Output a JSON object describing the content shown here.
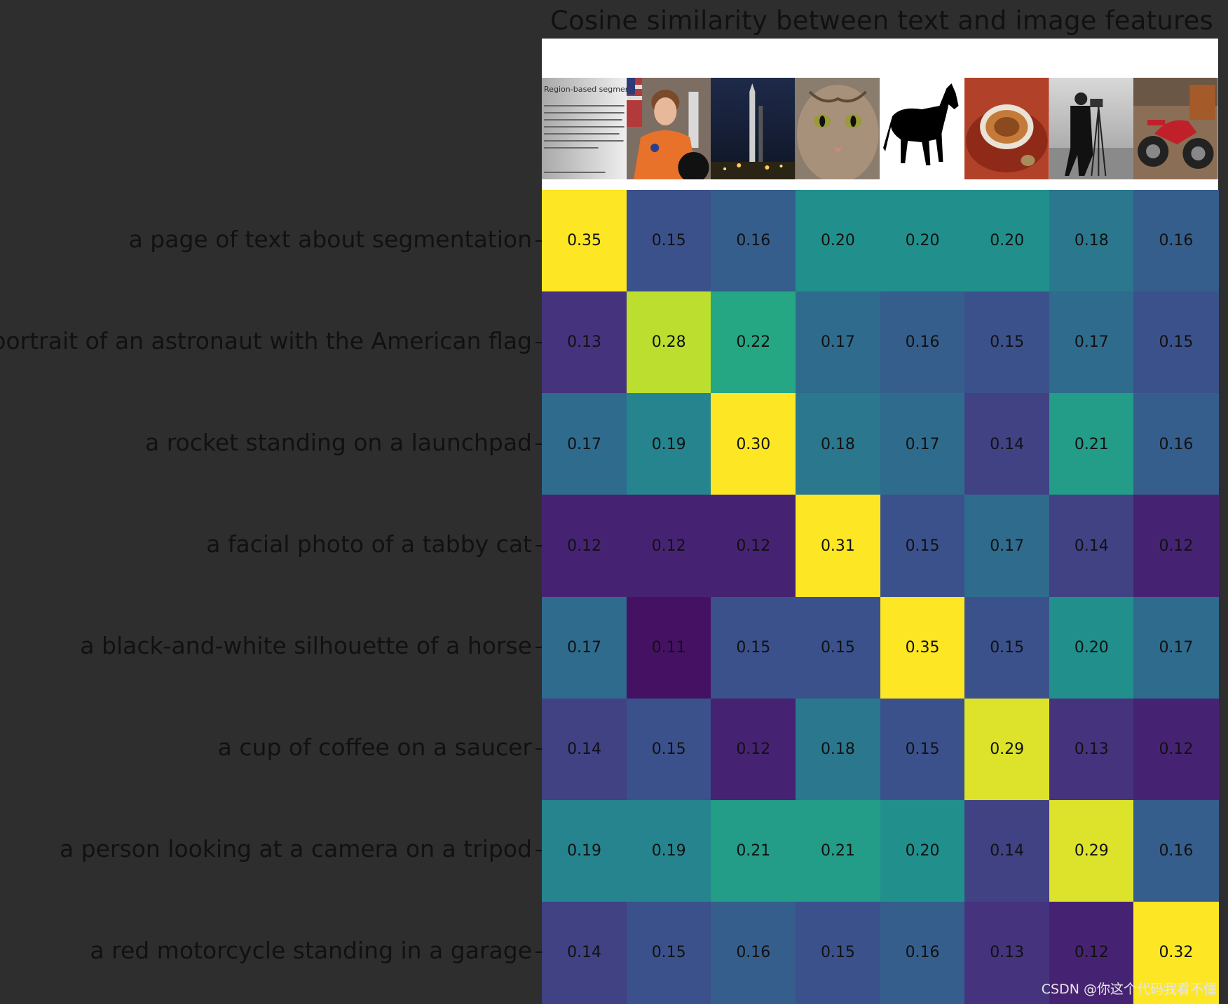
{
  "chart_data": {
    "type": "heatmap",
    "title": "Cosine similarity between text and image features",
    "row_labels": [
      "a page of text about segmentation",
      "a portrait of an astronaut with the American flag",
      "a rocket standing on a launchpad",
      "a facial photo of a tabby cat",
      "a black-and-white silhouette of a horse",
      "a cup of coffee on a saucer",
      "a person looking at a camera on a tripod",
      "a red motorcycle standing in a garage"
    ],
    "column_images": [
      "page-of-text",
      "astronaut",
      "rocket",
      "cat",
      "horse",
      "coffee",
      "camera",
      "motorcycle"
    ],
    "values": [
      [
        0.35,
        0.15,
        0.16,
        0.2,
        0.2,
        0.2,
        0.18,
        0.16
      ],
      [
        0.13,
        0.28,
        0.22,
        0.17,
        0.16,
        0.15,
        0.17,
        0.15
      ],
      [
        0.17,
        0.19,
        0.3,
        0.18,
        0.17,
        0.14,
        0.21,
        0.16
      ],
      [
        0.12,
        0.12,
        0.12,
        0.31,
        0.15,
        0.17,
        0.14,
        0.12
      ],
      [
        0.17,
        0.11,
        0.15,
        0.15,
        0.35,
        0.15,
        0.2,
        0.17
      ],
      [
        0.14,
        0.15,
        0.12,
        0.18,
        0.15,
        0.29,
        0.13,
        0.12
      ],
      [
        0.19,
        0.19,
        0.21,
        0.21,
        0.2,
        0.14,
        0.29,
        0.16
      ],
      [
        0.14,
        0.15,
        0.16,
        0.15,
        0.16,
        0.13,
        0.12,
        0.32
      ]
    ],
    "colormap": "viridis",
    "vmin": 0.1,
    "vmax": 0.3
  },
  "thumbnail_text": {
    "heading": "Region-based segmentation"
  },
  "watermark": "CSDN @你这个代码我看不懂",
  "colors": {
    "background": "#2e2e2e",
    "text": "#111111"
  }
}
